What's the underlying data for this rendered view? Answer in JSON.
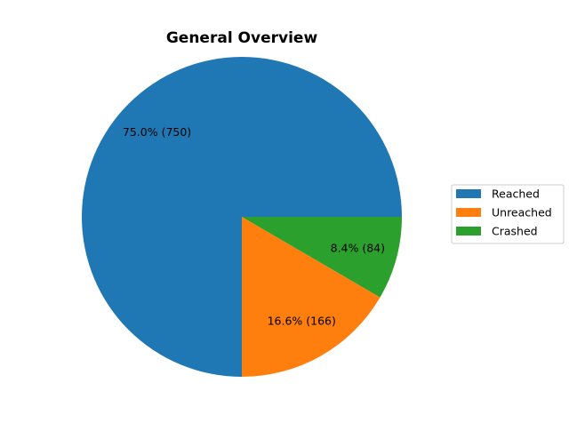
{
  "chart_data": {
    "type": "pie",
    "title": "General Overview",
    "categories": [
      "Reached",
      "Unreached",
      "Crashed"
    ],
    "values": [
      750,
      166,
      84
    ],
    "percent_labels": [
      "75.0%  (750)",
      "16.6%  (166)",
      "8.4%  (84)"
    ],
    "colors": [
      "#1f77b4",
      "#ff7f0e",
      "#2ca02c"
    ],
    "start_angle_deg": 0,
    "direction": "counterclockwise",
    "legend_placement": "right"
  }
}
